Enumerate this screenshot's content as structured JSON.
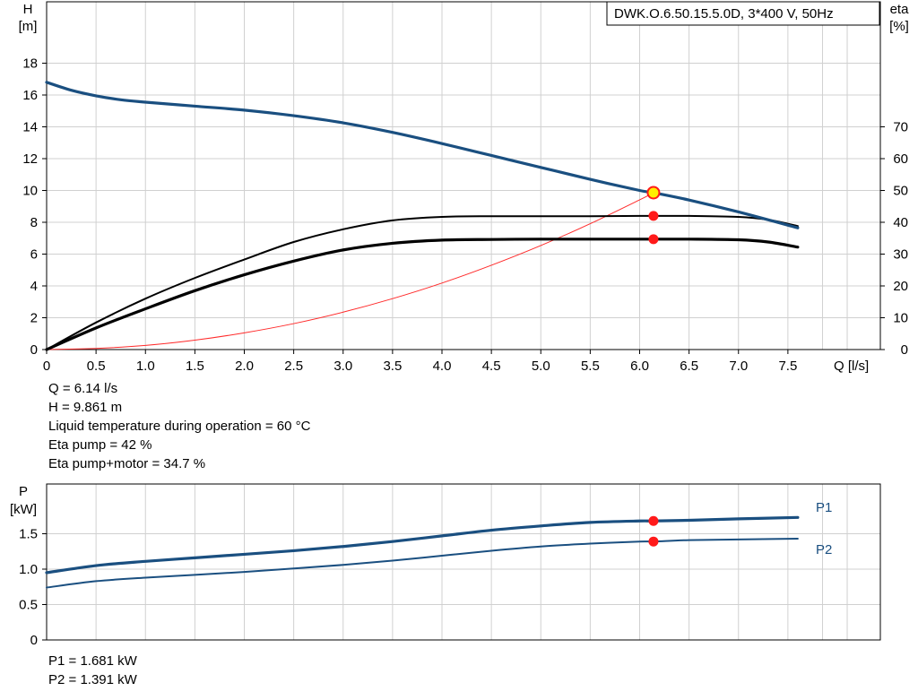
{
  "model_label": "DWK.O.6.50.15.5.0D, 3*400 V, 50Hz",
  "colors": {
    "head": "#1a4f80",
    "efficiency": "#000000",
    "npsh": "#ff2a2a",
    "power": "#1a4f80",
    "grid": "#d0d0d0",
    "marker": "#ff1a1a",
    "duty": "#ffee00"
  },
  "duty_info": [
    "Q = 6.14 l/s",
    "H = 9.861 m",
    "Liquid temperature during operation = 60 °C",
    "Eta pump = 42 %",
    "Eta pump+motor = 34.7 %"
  ],
  "power_info": [
    "P1 = 1.681 kW",
    "P2 = 1.391 kW"
  ],
  "chart_data": [
    {
      "type": "line",
      "x_label": "Q [l/s]",
      "y_label_name": "H",
      "y_label_unit": "[m]",
      "y2_label_name": "eta",
      "y2_label_unit": "[%]",
      "xlim": [
        0,
        7.6
      ],
      "ylim": [
        0,
        20
      ],
      "y2lim": [
        0,
        100
      ],
      "x_ticks": [
        "0",
        "0.5",
        "1.0",
        "1.5",
        "2.0",
        "2.5",
        "3.0",
        "3.5",
        "4.0",
        "4.5",
        "5.0",
        "5.5",
        "6.0",
        "6.5",
        "7.0",
        "7.5"
      ],
      "y_ticks": [
        "0",
        "2",
        "4",
        "6",
        "8",
        "10",
        "12",
        "14",
        "16",
        "18"
      ],
      "y2_ticks": [
        "0",
        "10",
        "20",
        "30",
        "40",
        "50",
        "60",
        "70"
      ],
      "grid": true,
      "series": [
        {
          "key": "head",
          "axis": "left",
          "x": [
            0,
            0.25,
            0.5,
            0.75,
            1.0,
            1.5,
            2.0,
            2.5,
            3.0,
            3.5,
            4.0,
            4.5,
            5.0,
            5.5,
            6.0,
            6.14,
            6.5,
            7.0,
            7.6
          ],
          "y": [
            16.8,
            16.3,
            15.95,
            15.7,
            15.55,
            15.3,
            15.05,
            14.7,
            14.25,
            13.65,
            12.95,
            12.2,
            11.45,
            10.7,
            10.0,
            9.86,
            9.4,
            8.65,
            7.65
          ]
        },
        {
          "key": "eta-pump",
          "axis": "right",
          "x": [
            0,
            0.5,
            1.0,
            1.5,
            2.0,
            2.5,
            3.0,
            3.5,
            4.0,
            4.5,
            5.0,
            5.5,
            6.0,
            6.14,
            6.5,
            7.0,
            7.3,
            7.6
          ],
          "y": [
            0,
            8.5,
            16,
            22.5,
            28.3,
            33.8,
            37.8,
            40.6,
            41.7,
            41.9,
            41.9,
            41.9,
            42.0,
            42.0,
            42.0,
            41.7,
            40.8,
            38.8
          ]
        },
        {
          "key": "eta-total",
          "axis": "right",
          "x": [
            0,
            0.5,
            1.0,
            1.5,
            2.0,
            2.5,
            3.0,
            3.5,
            4.0,
            4.5,
            5.0,
            5.5,
            6.0,
            6.14,
            6.5,
            7.0,
            7.3,
            7.6
          ],
          "y": [
            0,
            6.8,
            12.8,
            18.5,
            23.5,
            27.8,
            31.3,
            33.4,
            34.4,
            34.6,
            34.7,
            34.7,
            34.7,
            34.7,
            34.7,
            34.5,
            33.8,
            32.2
          ]
        },
        {
          "key": "system-curve",
          "axis": "left",
          "x": [
            0,
            0.5,
            1.0,
            1.5,
            2.0,
            2.5,
            3.0,
            3.5,
            4.0,
            4.5,
            5.0,
            5.5,
            6.0,
            6.14
          ],
          "y": [
            0,
            0.07,
            0.26,
            0.59,
            1.05,
            1.63,
            2.35,
            3.2,
            4.18,
            5.3,
            6.54,
            7.91,
            9.41,
            9.86
          ]
        }
      ],
      "markers": [
        {
          "axis": "left",
          "x": 6.14,
          "y": 9.86,
          "style": "duty"
        },
        {
          "axis": "right",
          "x": 6.14,
          "y": 42.0,
          "style": "point"
        },
        {
          "axis": "right",
          "x": 6.14,
          "y": 34.7,
          "style": "point"
        }
      ]
    },
    {
      "type": "line",
      "y_label_name": "P",
      "y_label_unit": "[kW]",
      "xlim": [
        0,
        7.6
      ],
      "ylim": [
        0,
        2.0
      ],
      "y_ticks": [
        "0",
        "0.5",
        "1.0",
        "1.5"
      ],
      "grid": true,
      "series": [
        {
          "name": "P1",
          "x": [
            0,
            0.5,
            1.0,
            1.5,
            2.0,
            2.5,
            3.0,
            3.5,
            4.0,
            4.5,
            5.0,
            5.5,
            6.0,
            6.14,
            6.5,
            7.0,
            7.6
          ],
          "y": [
            0.95,
            1.05,
            1.11,
            1.16,
            1.21,
            1.26,
            1.32,
            1.39,
            1.47,
            1.55,
            1.61,
            1.66,
            1.68,
            1.68,
            1.69,
            1.71,
            1.73
          ]
        },
        {
          "name": "P2",
          "x": [
            0,
            0.5,
            1.0,
            1.5,
            2.0,
            2.5,
            3.0,
            3.5,
            4.0,
            4.5,
            5.0,
            5.5,
            6.0,
            6.14,
            6.5,
            7.0,
            7.6
          ],
          "y": [
            0.74,
            0.83,
            0.88,
            0.92,
            0.96,
            1.01,
            1.06,
            1.12,
            1.19,
            1.26,
            1.32,
            1.36,
            1.39,
            1.39,
            1.41,
            1.42,
            1.43
          ]
        }
      ],
      "markers": [
        {
          "x": 6.14,
          "y": 1.68,
          "style": "point"
        },
        {
          "x": 6.14,
          "y": 1.39,
          "style": "point"
        }
      ]
    }
  ]
}
